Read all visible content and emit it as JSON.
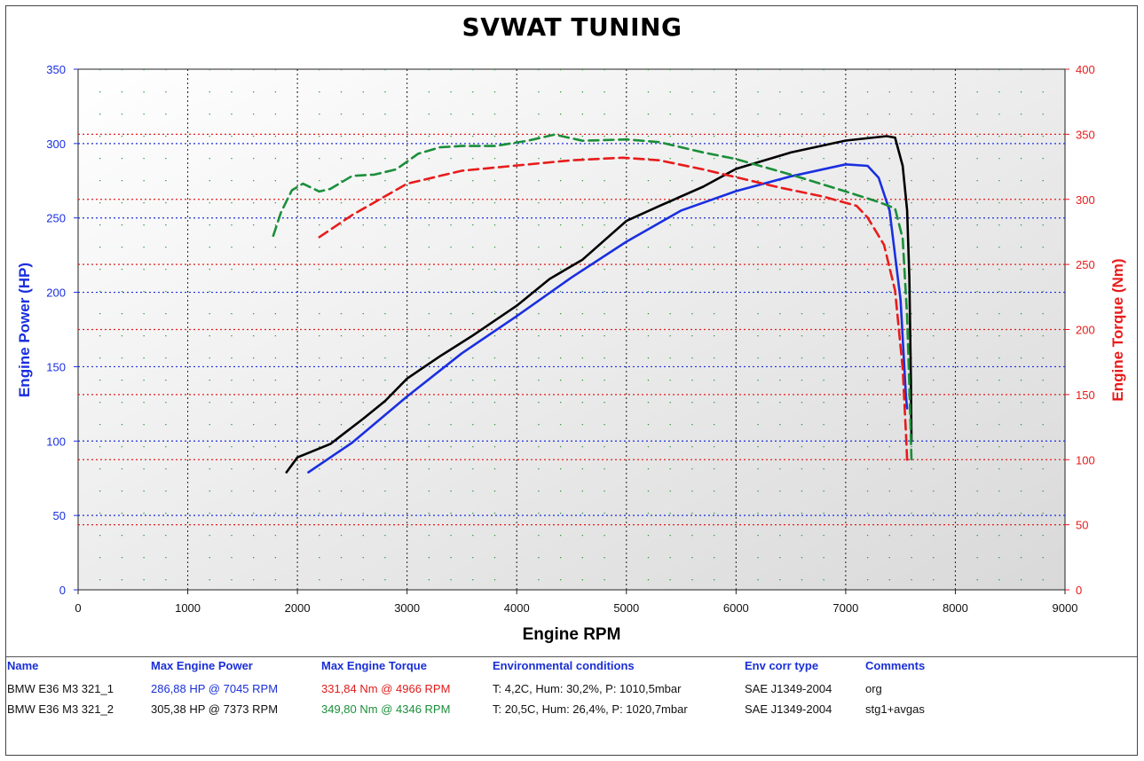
{
  "title": "SVWAT TUNING",
  "chart_data": {
    "type": "line",
    "xlabel": "Engine RPM",
    "ylabel_left": "Engine Power (HP)",
    "ylabel_right": "Engine Torque (Nm)",
    "xlim": [
      0,
      9000
    ],
    "ylim_left": [
      0,
      350
    ],
    "ylim_right": [
      0,
      400
    ],
    "x_ticks": [
      "0",
      "1000",
      "2000",
      "3000",
      "4000",
      "5000",
      "6000",
      "7000",
      "8000",
      "9000"
    ],
    "y_left_ticks": [
      "0",
      "50",
      "100",
      "150",
      "200",
      "250",
      "300",
      "350"
    ],
    "y_right_ticks": [
      "0",
      "50",
      "100",
      "150",
      "200",
      "250",
      "300",
      "350",
      "400"
    ],
    "grid": true,
    "series": [
      {
        "name": "BMW E36 M3 321_1 power",
        "axis": "left",
        "color": "#1a2fe0",
        "dash": false,
        "points": [
          [
            2100,
            79
          ],
          [
            2500,
            99
          ],
          [
            3000,
            130
          ],
          [
            3500,
            159
          ],
          [
            4000,
            184
          ],
          [
            4500,
            210
          ],
          [
            5000,
            234
          ],
          [
            5500,
            255
          ],
          [
            6000,
            268
          ],
          [
            6500,
            278
          ],
          [
            7000,
            286
          ],
          [
            7200,
            285
          ],
          [
            7300,
            277
          ],
          [
            7400,
            255
          ],
          [
            7500,
            195
          ],
          [
            7550,
            130
          ],
          [
            7560,
            122
          ]
        ]
      },
      {
        "name": "BMW E36 M3 321_2 power",
        "axis": "left",
        "color": "#000000",
        "dash": false,
        "points": [
          [
            1900,
            79
          ],
          [
            2000,
            89
          ],
          [
            2300,
            98
          ],
          [
            2600,
            115
          ],
          [
            2800,
            127
          ],
          [
            3000,
            142
          ],
          [
            3300,
            157
          ],
          [
            3600,
            171
          ],
          [
            4000,
            191
          ],
          [
            4300,
            209
          ],
          [
            4600,
            222
          ],
          [
            5000,
            248
          ],
          [
            5300,
            258
          ],
          [
            5700,
            271
          ],
          [
            6000,
            283
          ],
          [
            6500,
            294
          ],
          [
            7000,
            302
          ],
          [
            7373,
            305
          ],
          [
            7450,
            304
          ],
          [
            7520,
            285
          ],
          [
            7560,
            255
          ],
          [
            7580,
            210
          ],
          [
            7595,
            140
          ],
          [
            7600,
            100
          ]
        ]
      },
      {
        "name": "BMW E36 M3 321_1 torque",
        "axis": "right",
        "color": "#e81b1b",
        "dash": true,
        "points": [
          [
            2200,
            271
          ],
          [
            2500,
            288
          ],
          [
            3000,
            312
          ],
          [
            3500,
            322
          ],
          [
            4000,
            326
          ],
          [
            4500,
            330
          ],
          [
            4966,
            332
          ],
          [
            5300,
            330
          ],
          [
            5700,
            323
          ],
          [
            6000,
            317
          ],
          [
            6400,
            309
          ],
          [
            6800,
            302
          ],
          [
            7100,
            295
          ],
          [
            7200,
            286
          ],
          [
            7350,
            265
          ],
          [
            7450,
            230
          ],
          [
            7520,
            170
          ],
          [
            7550,
            120
          ],
          [
            7560,
            100
          ]
        ]
      },
      {
        "name": "BMW E36 M3 321_2 torque",
        "axis": "right",
        "color": "#1a8f3a",
        "dash": true,
        "points": [
          [
            1780,
            272
          ],
          [
            1850,
            290
          ],
          [
            1950,
            307
          ],
          [
            2050,
            312
          ],
          [
            2200,
            306
          ],
          [
            2300,
            308
          ],
          [
            2500,
            318
          ],
          [
            2700,
            319
          ],
          [
            2900,
            323
          ],
          [
            3100,
            335
          ],
          [
            3300,
            340
          ],
          [
            3500,
            341
          ],
          [
            3800,
            341
          ],
          [
            4100,
            345
          ],
          [
            4346,
            349.8
          ],
          [
            4600,
            345
          ],
          [
            5000,
            346
          ],
          [
            5300,
            344
          ],
          [
            5700,
            336
          ],
          [
            6000,
            331
          ],
          [
            6500,
            319
          ],
          [
            7000,
            306
          ],
          [
            7300,
            298
          ],
          [
            7450,
            293
          ],
          [
            7520,
            270
          ],
          [
            7560,
            210
          ],
          [
            7590,
            130
          ],
          [
            7600,
            100
          ]
        ]
      }
    ]
  },
  "table": {
    "headers": [
      "Name",
      "Max Engine Power",
      "Max Engine Torque",
      "Environmental conditions",
      "Env corr type",
      "Comments"
    ],
    "rows": [
      {
        "name": "BMW E36 M3 321_1",
        "power": "286,88 HP @ 7045 RPM",
        "torque": "331,84 Nm @ 4966 RPM",
        "env": "T: 4,2C, Hum: 30,2%, P: 1010,5mbar",
        "corr": "SAE J1349-2004",
        "comment": "org"
      },
      {
        "name": "BMW E36 M3 321_2",
        "power": "305,38 HP @ 7373 RPM",
        "torque": "349,80 Nm @ 4346 RPM",
        "env": "T: 20,5C, Hum: 26,4%, P: 1020,7mbar",
        "corr": "SAE J1349-2004",
        "comment": "stg1+avgas"
      }
    ]
  }
}
